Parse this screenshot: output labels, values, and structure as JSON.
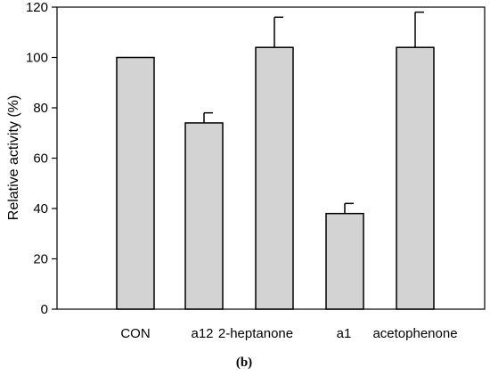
{
  "chart_data": {
    "type": "bar",
    "categories": [
      "CON",
      "a12",
      "2-heptanone",
      "a1",
      "acetophenone"
    ],
    "values": [
      100,
      74,
      104,
      38,
      104
    ],
    "errors": [
      0,
      4,
      12,
      4,
      14
    ],
    "ylabel": "Relative activity (%)",
    "xlabel": "",
    "ylim": [
      0,
      120
    ],
    "yticks": [
      0,
      20,
      40,
      60,
      80,
      100,
      120
    ],
    "grid": false,
    "bar_color": "#d3d3d3",
    "edge_color": "#000000"
  },
  "caption": "(b)"
}
